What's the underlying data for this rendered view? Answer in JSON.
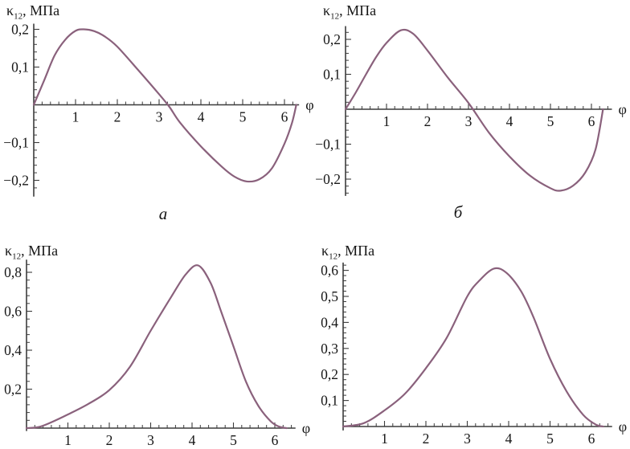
{
  "style": {
    "background": "#ffffff",
    "axis_color": "#3c3c3c",
    "text_color": "#161616",
    "curve_color": "#8a617c"
  },
  "chart_data": [
    {
      "id": "a",
      "type": "line",
      "position": "top-left",
      "panel_label": "а",
      "ylabel": {
        "symbol": "κ",
        "subscript": "12",
        "unit": ", МПа"
      },
      "xlabel": "φ",
      "xlim": [
        0,
        6.35
      ],
      "ylim": [
        -0.243,
        0.215
      ],
      "x_ticks": [
        {
          "v": 1,
          "label": "1"
        },
        {
          "v": 2,
          "label": "2"
        },
        {
          "v": 3,
          "label": "3"
        },
        {
          "v": 4,
          "label": "4"
        },
        {
          "v": 5,
          "label": "5"
        },
        {
          "v": 6,
          "label": "6"
        }
      ],
      "x_minor_step": 0.2,
      "x_minor_max": 6.2,
      "y_ticks": [
        {
          "v": 0.2,
          "label": "0,2"
        },
        {
          "v": 0.1,
          "label": "0,1"
        },
        {
          "v": -0.1,
          "label": "−0,1"
        },
        {
          "v": -0.2,
          "label": "−0,2"
        }
      ],
      "y_major_step": 0.1,
      "y_minor_step": 0.02,
      "y_minor_range": [
        -0.22,
        0.2
      ],
      "grid": false,
      "legend": "none",
      "series": [
        {
          "name": "κ12(φ)",
          "color": "#8a617c",
          "points": [
            [
              0,
              0
            ],
            [
              0.25,
              0.065
            ],
            [
              0.5,
              0.131
            ],
            [
              0.75,
              0.172
            ],
            [
              1,
              0.196
            ],
            [
              1.2,
              0.2
            ],
            [
              1.45,
              0.195
            ],
            [
              1.7,
              0.181
            ],
            [
              2,
              0.154
            ],
            [
              2.5,
              0.092
            ],
            [
              3,
              0.028
            ],
            [
              3.25,
              -0.006
            ],
            [
              3.5,
              -0.047
            ],
            [
              4,
              -0.11
            ],
            [
              4.5,
              -0.164
            ],
            [
              4.8,
              -0.19
            ],
            [
              5.1,
              -0.203
            ],
            [
              5.4,
              -0.197
            ],
            [
              5.7,
              -0.168
            ],
            [
              6,
              -0.103
            ],
            [
              6.18,
              -0.048
            ],
            [
              6.283,
              0
            ]
          ]
        }
      ]
    },
    {
      "id": "b",
      "type": "line",
      "position": "top-right",
      "panel_label": "б",
      "ylabel": {
        "symbol": "κ",
        "subscript": "12",
        "unit": ", МПа"
      },
      "xlabel": "φ",
      "xlim": [
        0,
        6.5
      ],
      "ylim": [
        -0.248,
        0.238
      ],
      "x_ticks": [
        {
          "v": 1,
          "label": "1"
        },
        {
          "v": 2,
          "label": "2"
        },
        {
          "v": 3,
          "label": "3"
        },
        {
          "v": 4,
          "label": "4"
        },
        {
          "v": 5,
          "label": "5"
        },
        {
          "v": 6,
          "label": "6"
        }
      ],
      "x_minor_step": 0.2,
      "x_minor_max": 6.4,
      "y_ticks": [
        {
          "v": 0.2,
          "label": "0,2"
        },
        {
          "v": 0.1,
          "label": "0,1"
        },
        {
          "v": -0.1,
          "label": "−0,1"
        },
        {
          "v": -0.2,
          "label": "−0,2"
        }
      ],
      "y_major_step": 0.1,
      "y_minor_step": 0.02,
      "y_minor_range": [
        -0.24,
        0.22
      ],
      "grid": false,
      "legend": "none",
      "series": [
        {
          "name": "κ12(φ)",
          "color": "#8a617c",
          "points": [
            [
              0,
              0
            ],
            [
              0.25,
              0.048
            ],
            [
              0.5,
              0.1
            ],
            [
              0.75,
              0.15
            ],
            [
              1,
              0.19
            ],
            [
              1.35,
              0.226
            ],
            [
              1.65,
              0.216
            ],
            [
              2,
              0.168
            ],
            [
              2.5,
              0.09
            ],
            [
              3,
              0.018
            ],
            [
              3.5,
              -0.067
            ],
            [
              4,
              -0.135
            ],
            [
              4.5,
              -0.19
            ],
            [
              5,
              -0.226
            ],
            [
              5.25,
              -0.233
            ],
            [
              5.55,
              -0.219
            ],
            [
              5.85,
              -0.181
            ],
            [
              6.1,
              -0.115
            ],
            [
              6.283,
              0
            ]
          ]
        }
      ]
    },
    {
      "id": "v",
      "type": "line",
      "position": "bottom-left",
      "panel_label": "",
      "ylabel": {
        "symbol": "κ",
        "subscript": "12",
        "unit": ", МПа"
      },
      "xlabel": "φ",
      "xlim": [
        0,
        6.5
      ],
      "ylim": [
        -0.015,
        0.865
      ],
      "x_ticks": [
        {
          "v": 1,
          "label": "1"
        },
        {
          "v": 2,
          "label": "2"
        },
        {
          "v": 3,
          "label": "3"
        },
        {
          "v": 4,
          "label": "4"
        },
        {
          "v": 5,
          "label": "5"
        },
        {
          "v": 6,
          "label": "6"
        }
      ],
      "x_minor_step": 0.2,
      "x_minor_max": 6.4,
      "y_ticks": [
        {
          "v": 0.8,
          "label": "0,8"
        },
        {
          "v": 0.6,
          "label": "0,6"
        },
        {
          "v": 0.4,
          "label": "0,4"
        },
        {
          "v": 0.2,
          "label": "0,2"
        }
      ],
      "y_major_step": 0.2,
      "y_minor_step": 0.04,
      "y_minor_range": [
        0.04,
        0.84
      ],
      "grid": false,
      "legend": "none",
      "series": [
        {
          "name": "κ12(φ)",
          "color": "#8a617c",
          "points": [
            [
              0,
              0
            ],
            [
              0.3,
              0.006
            ],
            [
              0.6,
              0.03
            ],
            [
              1,
              0.07
            ],
            [
              1.5,
              0.125
            ],
            [
              2,
              0.195
            ],
            [
              2.5,
              0.315
            ],
            [
              3,
              0.5
            ],
            [
              3.5,
              0.675
            ],
            [
              3.85,
              0.79
            ],
            [
              4.15,
              0.835
            ],
            [
              4.45,
              0.745
            ],
            [
              4.7,
              0.6
            ],
            [
              5,
              0.42
            ],
            [
              5.3,
              0.24
            ],
            [
              5.6,
              0.115
            ],
            [
              5.9,
              0.035
            ],
            [
              6.1,
              0.008
            ],
            [
              6.283,
              0
            ]
          ]
        }
      ]
    },
    {
      "id": "g",
      "type": "line",
      "position": "bottom-right",
      "panel_label": "",
      "ylabel": {
        "symbol": "κ",
        "subscript": "12",
        "unit": ", МПа"
      },
      "xlabel": "φ",
      "xlim": [
        0,
        6.5
      ],
      "ylim": [
        -0.015,
        0.63
      ],
      "x_ticks": [
        {
          "v": 1,
          "label": "1"
        },
        {
          "v": 2,
          "label": "2"
        },
        {
          "v": 3,
          "label": "3"
        },
        {
          "v": 4,
          "label": "4"
        },
        {
          "v": 5,
          "label": "5"
        },
        {
          "v": 6,
          "label": "6"
        }
      ],
      "x_minor_step": 0.2,
      "x_minor_max": 6.4,
      "y_ticks": [
        {
          "v": 0.6,
          "label": "0,6"
        },
        {
          "v": 0.5,
          "label": "0,5"
        },
        {
          "v": 0.4,
          "label": "0,4"
        },
        {
          "v": 0.3,
          "label": "0,3"
        },
        {
          "v": 0.2,
          "label": "0,2"
        },
        {
          "v": 0.1,
          "label": "0,1"
        }
      ],
      "y_major_step": 0.1,
      "y_minor_step": 0.02,
      "y_minor_range": [
        0.02,
        0.62
      ],
      "grid": false,
      "legend": "none",
      "series": [
        {
          "name": "κ12(φ)",
          "color": "#8a617c",
          "points": [
            [
              0,
              0
            ],
            [
              0.5,
              0.013
            ],
            [
              1,
              0.062
            ],
            [
              1.5,
              0.127
            ],
            [
              2,
              0.224
            ],
            [
              2.5,
              0.34
            ],
            [
              3,
              0.5
            ],
            [
              3.3,
              0.562
            ],
            [
              3.65,
              0.607
            ],
            [
              3.95,
              0.59
            ],
            [
              4.3,
              0.52
            ],
            [
              4.6,
              0.42
            ],
            [
              5,
              0.26
            ],
            [
              5.4,
              0.135
            ],
            [
              5.8,
              0.045
            ],
            [
              6.1,
              0.008
            ],
            [
              6.283,
              0
            ]
          ]
        }
      ]
    }
  ]
}
